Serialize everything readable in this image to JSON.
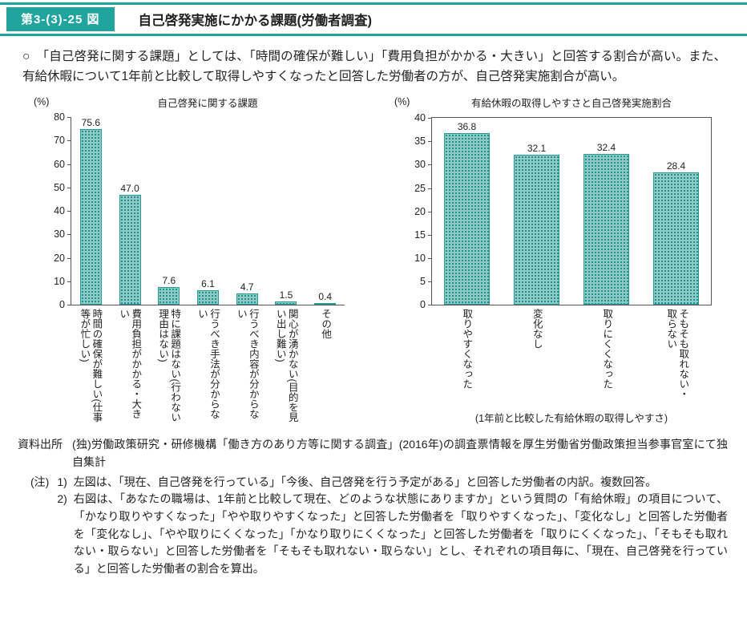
{
  "header": {
    "figure_number": "第3-(3)-25 図",
    "title": "自己啓発実施にかかる課題(労働者調査)"
  },
  "summary": {
    "bullet": "○",
    "text": "「自己啓発に関する課題」としては、「時間の確保が難しい」「費用負担がかかる・大きい」と回答する割合が高い。また、有給休暇について1年前と比較して取得しやすくなったと回答した労働者の方が、自己啓発実施割合が高い。"
  },
  "chart_data": [
    {
      "type": "bar",
      "title": "自己啓発に関する課題",
      "unit_label": "(%)",
      "categories": [
        "時間の確保が難しい(仕事等が忙しい)",
        "費用負担がかかる・大きい",
        "特に課題はない(行わない理由はない)",
        "行うべき手法が分からない",
        "行うべき内容が分からない",
        "関心が湧かない(目的を見い出し難い)",
        "その他"
      ],
      "values": [
        75.6,
        47.0,
        7.6,
        6.1,
        4.7,
        1.5,
        0.4
      ],
      "xlabel": "",
      "ylabel": "%",
      "ylim": [
        0,
        80
      ],
      "ytick_interval": 10,
      "grid": false,
      "legend": "none"
    },
    {
      "type": "bar",
      "title": "有給休暇の取得しやすさと自己啓発実施割合",
      "unit_label": "(%)",
      "categories": [
        "取りやすくなった",
        "変化なし",
        "取りにくくなった",
        "そもそも取れない・取らない"
      ],
      "values": [
        36.8,
        32.1,
        32.4,
        28.4
      ],
      "xlabel": "",
      "ylabel": "%",
      "ylim": [
        0,
        40
      ],
      "ytick_interval": 5,
      "grid": false,
      "legend": "none",
      "caption": "(1年前と比較した有給休暇の取得しやすさ)"
    }
  ],
  "source": {
    "label": "資料出所",
    "text": "(独)労働政策研究・研修機構「働き方のあり方等に関する調査」(2016年)の調査票情報を厚生労働省労働政策担当参事官室にて独自集計"
  },
  "notes": {
    "label": "(注)",
    "items": [
      {
        "num": "1)",
        "text": "左図は、「現在、自己啓発を行っている」「今後、自己啓発を行う予定がある」と回答した労働者の内訳。複数回答。"
      },
      {
        "num": "2)",
        "text": "右図は、「あなたの職場は、1年前と比較して現在、どのような状態にありますか」という質問の「有給休暇」の項目について、「かなり取りやすくなった」「やや取りやすくなった」と回答した労働者を「取りやすくなった」、「変化なし」と回答した労働者を「変化なし」、「やや取りにくくなった」「かなり取りにくくなった」と回答した労働者を「取りにくくなった」、「そもそも取れない・取らない」と回答した労働者を「そもそも取れない・取らない」とし、それぞれの項目毎に、「現在、自己啓発を行っている」と回答した労働者の割合を算出。"
      }
    ]
  },
  "colors": {
    "accent_teal": "#21a49d",
    "bar_fill_base": "#8fcac7",
    "bar_dot": "#1f918d",
    "bar_border": "#2a9a96",
    "axis": "#555555",
    "text": "#222222"
  }
}
